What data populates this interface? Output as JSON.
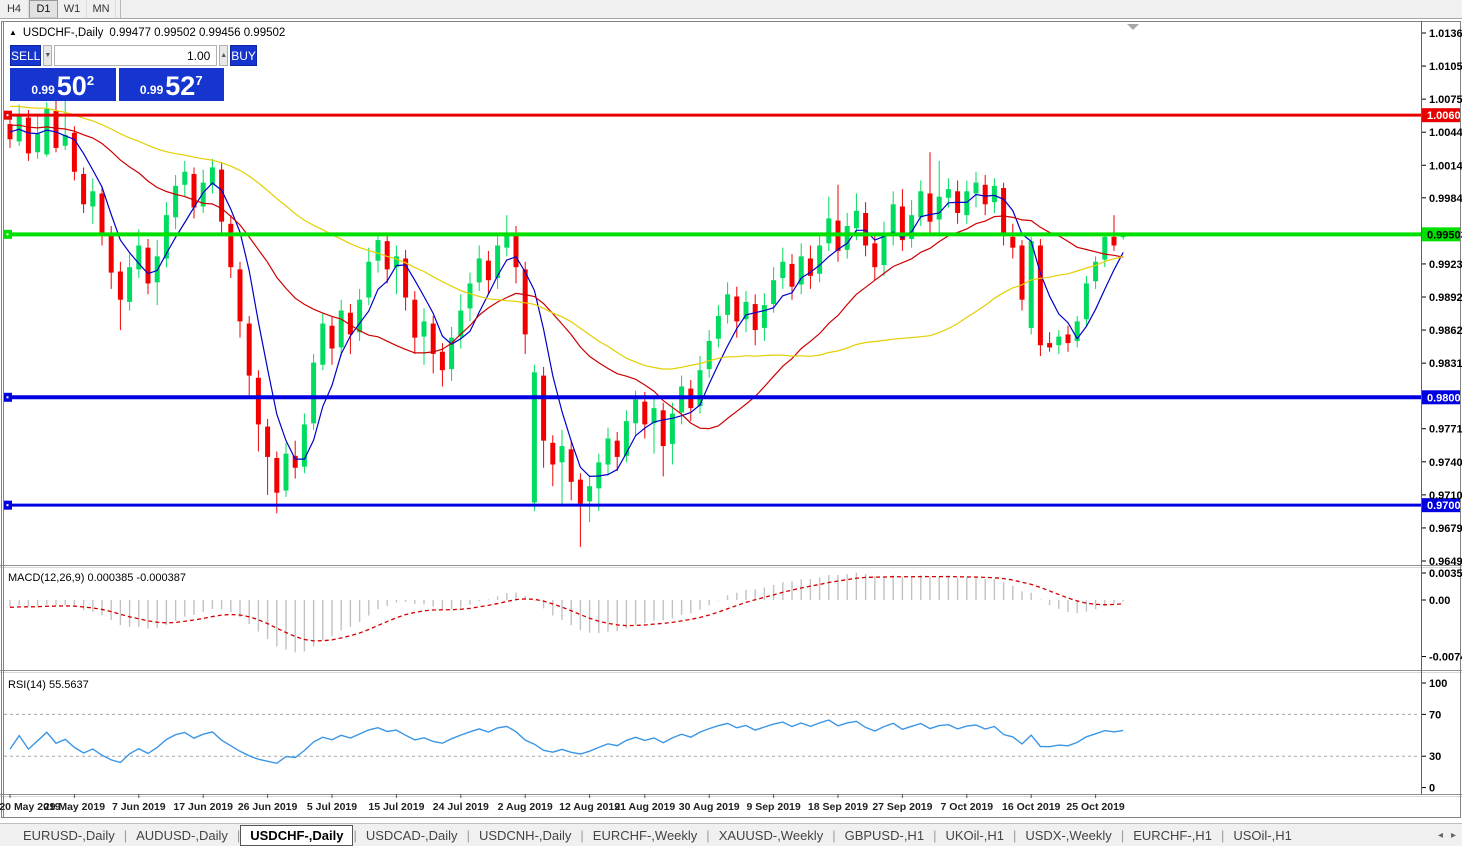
{
  "toolbar": {
    "timeframes": [
      {
        "label": "H4",
        "active": false
      },
      {
        "label": "D1",
        "active": true
      },
      {
        "label": "W1",
        "active": false
      },
      {
        "label": "MN",
        "active": false
      }
    ]
  },
  "chart": {
    "collapse_icon": "▲",
    "symbol_title": "USDCHF-,Daily",
    "ohlc_line": "0.99477 0.99502 0.99456 0.99502"
  },
  "trade_panel": {
    "sell_label": "SELL",
    "buy_label": "BUY",
    "volume": "1.00",
    "spin_down": "▼",
    "spin_up": "▲",
    "sell_price": {
      "prefix": "0.99",
      "big": "50",
      "sup": "2"
    },
    "buy_price": {
      "prefix": "0.99",
      "big": "52",
      "sup": "7"
    }
  },
  "price_axis": {
    "ticks": [
      "1.01360",
      "1.01055",
      "1.00750",
      "1.00445",
      "1.00140",
      "0.99840",
      "0.99230",
      "0.98925",
      "0.98620",
      "0.98315",
      "0.97710",
      "0.97405",
      "0.97100",
      "0.96795",
      "0.96490"
    ]
  },
  "hlines": [
    {
      "label": "1.00602",
      "price": 1.00602,
      "color": "#e80000",
      "text_color": "#ffffff",
      "width": 3
    },
    {
      "label": "0.99503",
      "price": 0.99503,
      "color": "#00e000",
      "text_color": "#000000",
      "width": 4
    },
    {
      "label": "0.98000",
      "price": 0.98,
      "color": "#0000e0",
      "text_color": "#ffffff",
      "width": 4
    },
    {
      "label": "0.97005",
      "price": 0.97005,
      "color": "#0000e0",
      "text_color": "#ffffff",
      "width": 3
    }
  ],
  "indicators": {
    "macd": {
      "label": "MACD(12,26,9)",
      "values_text": "0.000385 -0.000387",
      "axis_ticks": [
        {
          "label": "0.003574",
          "value": 0.003574
        },
        {
          "label": "0.00",
          "value": 0
        },
        {
          "label": "-0.00749",
          "value": -0.00749
        }
      ],
      "fast": 12,
      "slow": 26,
      "signal": 9
    },
    "rsi": {
      "label": "RSI(14)",
      "value_text": "55.5637",
      "period": 14,
      "axis_ticks": [
        {
          "label": "100",
          "value": 100
        },
        {
          "label": "70",
          "value": 70
        },
        {
          "label": "30",
          "value": 30
        },
        {
          "label": "0",
          "value": 0
        }
      ],
      "dashed_levels": [
        70,
        30
      ]
    }
  },
  "moving_averages": [
    {
      "name": "ma-fast",
      "period": 5,
      "color": "#0000c8"
    },
    {
      "name": "ma-mid",
      "period": 20,
      "color": "#cc0000"
    },
    {
      "name": "ma-slow",
      "period": 45,
      "color": "#e3cf00"
    }
  ],
  "chart_data": {
    "type": "candlestick",
    "symbol": "USDCHF",
    "timeframe": "Daily",
    "date_labels": [
      {
        "text": "20 May 2019",
        "bar": 0
      },
      {
        "text": "29 May 2019",
        "bar": 7
      },
      {
        "text": "7 Jun 2019",
        "bar": 14
      },
      {
        "text": "17 Jun 2019",
        "bar": 21
      },
      {
        "text": "26 Jun 2019",
        "bar": 28
      },
      {
        "text": "5 Jul 2019",
        "bar": 35
      },
      {
        "text": "15 Jul 2019",
        "bar": 42
      },
      {
        "text": "24 Jul 2019",
        "bar": 49
      },
      {
        "text": "2 Aug 2019",
        "bar": 56
      },
      {
        "text": "12 Aug 2019",
        "bar": 63
      },
      {
        "text": "21 Aug 2019",
        "bar": 69
      },
      {
        "text": "30 Aug 2019",
        "bar": 76
      },
      {
        "text": "9 Sep 2019",
        "bar": 83
      },
      {
        "text": "18 Sep 2019",
        "bar": 90
      },
      {
        "text": "27 Sep 2019",
        "bar": 97
      },
      {
        "text": "7 Oct 2019",
        "bar": 104
      },
      {
        "text": "16 Oct 2019",
        "bar": 111
      },
      {
        "text": "25 Oct 2019",
        "bar": 118
      }
    ],
    "history_closes": [
      1.0125,
      1.0118,
      1.0122,
      1.011,
      1.0102,
      1.0108,
      1.0095,
      1.0088,
      1.0092,
      1.008,
      1.0072,
      1.0078,
      1.0085,
      1.0076,
      1.0068,
      1.006,
      1.0065,
      1.0072,
      1.0066,
      1.0058,
      1.005,
      1.0056,
      1.0062,
      1.0055,
      1.0048,
      1.0052,
      1.0058,
      1.005,
      1.0044,
      1.0048,
      1.0054,
      1.006,
      1.0052,
      1.0046,
      1.005,
      1.0056,
      1.0048,
      1.0042,
      1.0046,
      1.005
    ],
    "candles": [
      [
        1.0052,
        1.0062,
        1.003,
        1.0038
      ],
      [
        1.0036,
        1.007,
        1.0032,
        1.006
      ],
      [
        1.0058,
        1.0065,
        1.0018,
        1.0025
      ],
      [
        1.0026,
        1.006,
        1.002,
        1.0043
      ],
      [
        1.0024,
        1.0072,
        1.0022,
        1.0066
      ],
      [
        1.0064,
        1.0088,
        1.0026,
        1.003
      ],
      [
        1.0032,
        1.0085,
        1.0028,
        1.0042
      ],
      [
        1.0044,
        1.005,
        1.0,
        1.0008
      ],
      [
        1.0006,
        1.0012,
        0.997,
        0.9978
      ],
      [
        0.9976,
        1.0002,
        0.996,
        0.999
      ],
      [
        0.9988,
        0.9995,
        0.994,
        0.9952
      ],
      [
        0.995,
        0.9958,
        0.99,
        0.9915
      ],
      [
        0.9916,
        0.9925,
        0.9862,
        0.989
      ],
      [
        0.9888,
        0.9932,
        0.988,
        0.992
      ],
      [
        0.9918,
        0.9955,
        0.991,
        0.994
      ],
      [
        0.9938,
        0.9946,
        0.9895,
        0.9905
      ],
      [
        0.9906,
        0.9945,
        0.9885,
        0.993
      ],
      [
        0.9928,
        0.998,
        0.992,
        0.9968
      ],
      [
        0.9966,
        1.0005,
        0.9955,
        0.9995
      ],
      [
        0.9996,
        1.0018,
        0.9985,
        1.0008
      ],
      [
        1.0006,
        1.0012,
        0.9965,
        0.9975
      ],
      [
        0.9976,
        1.001,
        0.997,
        0.9998
      ],
      [
        0.9996,
        1.002,
        0.9988,
        1.0012
      ],
      [
        1.001,
        1.0016,
        0.995,
        0.9962
      ],
      [
        0.996,
        0.9968,
        0.991,
        0.992
      ],
      [
        0.9918,
        0.9925,
        0.9855,
        0.987
      ],
      [
        0.9868,
        0.9875,
        0.98,
        0.982
      ],
      [
        0.9818,
        0.9825,
        0.975,
        0.9775
      ],
      [
        0.9773,
        0.978,
        0.971,
        0.9745
      ],
      [
        0.9744,
        0.975,
        0.9693,
        0.9712
      ],
      [
        0.9714,
        0.9758,
        0.9708,
        0.9748
      ],
      [
        0.9746,
        0.976,
        0.9725,
        0.9735
      ],
      [
        0.9736,
        0.9785,
        0.973,
        0.9775
      ],
      [
        0.9776,
        0.984,
        0.977,
        0.9832
      ],
      [
        0.983,
        0.9878,
        0.9825,
        0.9868
      ],
      [
        0.9866,
        0.9875,
        0.983,
        0.9845
      ],
      [
        0.9846,
        0.989,
        0.9838,
        0.988
      ],
      [
        0.9878,
        0.9886,
        0.984,
        0.9858
      ],
      [
        0.986,
        0.99,
        0.9852,
        0.989
      ],
      [
        0.9892,
        0.9938,
        0.9885,
        0.9925
      ],
      [
        0.9926,
        0.9952,
        0.9915,
        0.9945
      ],
      [
        0.9944,
        0.995,
        0.9905,
        0.9918
      ],
      [
        0.992,
        0.994,
        0.9895,
        0.993
      ],
      [
        0.9928,
        0.9936,
        0.988,
        0.9892
      ],
      [
        0.989,
        0.9898,
        0.984,
        0.9855
      ],
      [
        0.9856,
        0.9882,
        0.983,
        0.987
      ],
      [
        0.9868,
        0.9875,
        0.9822,
        0.984
      ],
      [
        0.9842,
        0.985,
        0.981,
        0.9825
      ],
      [
        0.9826,
        0.9865,
        0.9815,
        0.9855
      ],
      [
        0.9856,
        0.9895,
        0.9845,
        0.988
      ],
      [
        0.9882,
        0.9915,
        0.987,
        0.9905
      ],
      [
        0.9906,
        0.994,
        0.9898,
        0.9928
      ],
      [
        0.9926,
        0.9935,
        0.9895,
        0.9908
      ],
      [
        0.991,
        0.995,
        0.99,
        0.994
      ],
      [
        0.9938,
        0.9968,
        0.993,
        0.9952
      ],
      [
        0.995,
        0.9958,
        0.9905,
        0.992
      ],
      [
        0.9918,
        0.9925,
        0.984,
        0.9858
      ],
      [
        0.9703,
        0.983,
        0.9695,
        0.9823
      ],
      [
        0.982,
        0.9828,
        0.9735,
        0.976
      ],
      [
        0.9758,
        0.9765,
        0.9718,
        0.9738
      ],
      [
        0.974,
        0.977,
        0.97,
        0.9755
      ],
      [
        0.9752,
        0.976,
        0.9705,
        0.9722
      ],
      [
        0.9724,
        0.973,
        0.9662,
        0.9702
      ],
      [
        0.9704,
        0.9728,
        0.9685,
        0.9718
      ],
      [
        0.9716,
        0.9748,
        0.9695,
        0.974
      ],
      [
        0.9738,
        0.9772,
        0.9728,
        0.9762
      ],
      [
        0.976,
        0.9768,
        0.9732,
        0.9745
      ],
      [
        0.9746,
        0.9788,
        0.974,
        0.9778
      ],
      [
        0.9776,
        0.9806,
        0.9765,
        0.9798
      ],
      [
        0.9796,
        0.9805,
        0.9762,
        0.9775
      ],
      [
        0.9776,
        0.98,
        0.9748,
        0.979
      ],
      [
        0.9788,
        0.9795,
        0.9727,
        0.9755
      ],
      [
        0.9757,
        0.9795,
        0.9738,
        0.9785
      ],
      [
        0.9786,
        0.982,
        0.9775,
        0.981
      ],
      [
        0.9808,
        0.9816,
        0.9778,
        0.979
      ],
      [
        0.9792,
        0.9838,
        0.9785,
        0.9825
      ],
      [
        0.9826,
        0.9862,
        0.9818,
        0.9852
      ],
      [
        0.9854,
        0.9885,
        0.9846,
        0.9875
      ],
      [
        0.9876,
        0.9906,
        0.9868,
        0.9895
      ],
      [
        0.9893,
        0.9902,
        0.9855,
        0.987
      ],
      [
        0.9872,
        0.9898,
        0.986,
        0.9888
      ],
      [
        0.9886,
        0.9895,
        0.9848,
        0.9862
      ],
      [
        0.9864,
        0.9896,
        0.9852,
        0.9885
      ],
      [
        0.9886,
        0.992,
        0.9878,
        0.9908
      ],
      [
        0.991,
        0.9938,
        0.99,
        0.9925
      ],
      [
        0.9923,
        0.9932,
        0.989,
        0.9902
      ],
      [
        0.9904,
        0.9942,
        0.9895,
        0.993
      ],
      [
        0.9928,
        0.994,
        0.99,
        0.9912
      ],
      [
        0.9914,
        0.9952,
        0.9906,
        0.994
      ],
      [
        0.9942,
        0.9985,
        0.9935,
        0.9965
      ],
      [
        0.9963,
        0.9996,
        0.9925,
        0.9935
      ],
      [
        0.9936,
        0.997,
        0.9928,
        0.9958
      ],
      [
        0.9956,
        0.9988,
        0.9945,
        0.9972
      ],
      [
        0.997,
        0.998,
        0.993,
        0.994
      ],
      [
        0.9942,
        0.995,
        0.9908,
        0.992
      ],
      [
        0.9922,
        0.9962,
        0.9912,
        0.9952
      ],
      [
        0.995,
        0.999,
        0.994,
        0.9978
      ],
      [
        0.9976,
        0.9992,
        0.9935,
        0.9945
      ],
      [
        0.9946,
        0.9982,
        0.9938,
        0.9968
      ],
      [
        0.9966,
        1.0,
        0.9958,
        0.999
      ],
      [
        0.9988,
        1.0026,
        0.995,
        0.9962
      ],
      [
        0.9964,
        1.0018,
        0.9952,
        0.9985
      ],
      [
        0.9984,
        1.0002,
        0.9975,
        0.9992
      ],
      [
        0.999,
        1.0,
        0.996,
        0.997
      ],
      [
        0.9968,
        1.0,
        0.996,
        0.999
      ],
      [
        0.9988,
        1.0008,
        0.9975,
        0.9998
      ],
      [
        0.9996,
        1.0005,
        0.9968,
        0.9978
      ],
      [
        0.998,
        1.0002,
        0.997,
        0.9995
      ],
      [
        0.9993,
        0.9998,
        0.994,
        0.9952
      ],
      [
        0.9948,
        0.996,
        0.9928,
        0.9938
      ],
      [
        0.994,
        0.9945,
        0.988,
        0.989
      ],
      [
        0.9864,
        0.9948,
        0.9858,
        0.9944
      ],
      [
        0.994,
        0.9946,
        0.9838,
        0.9848
      ],
      [
        0.985,
        0.986,
        0.9842,
        0.9846
      ],
      [
        0.9848,
        0.9862,
        0.984,
        0.9856
      ],
      [
        0.9858,
        0.9866,
        0.9842,
        0.985
      ],
      [
        0.9852,
        0.9875,
        0.9846,
        0.987
      ],
      [
        0.9872,
        0.9912,
        0.9865,
        0.9905
      ],
      [
        0.9907,
        0.993,
        0.99,
        0.9925
      ],
      [
        0.9927,
        0.9952,
        0.992,
        0.9948
      ],
      [
        0.9948,
        0.9968,
        0.9935,
        0.994
      ],
      [
        0.99477,
        0.99502,
        0.99456,
        0.99502
      ]
    ]
  },
  "tabs": {
    "items": [
      {
        "label": "EURUSD-,Daily",
        "active": false
      },
      {
        "label": "AUDUSD-,Daily",
        "active": false
      },
      {
        "label": "USDCHF-,Daily",
        "active": true
      },
      {
        "label": "USDCAD-,Daily",
        "active": false
      },
      {
        "label": "USDCNH-,Daily",
        "active": false
      },
      {
        "label": "EURCHF-,Weekly",
        "active": false
      },
      {
        "label": "XAUUSD-,Weekly",
        "active": false
      },
      {
        "label": "GBPUSD-,H1",
        "active": false
      },
      {
        "label": "UKOil-,H1",
        "active": false
      },
      {
        "label": "USDX-,Weekly",
        "active": false
      },
      {
        "label": "EURCHF-,H1",
        "active": false
      },
      {
        "label": "USOil-,H1",
        "active": false
      }
    ],
    "scroll_left": "◂",
    "scroll_right": "▸"
  },
  "colors": {
    "candle_up": "#00dc5f",
    "candle_down": "#f20000",
    "macd_hist": "#c2c2c2",
    "macd_signal": "#d40000",
    "rsi_line": "#3c96e6",
    "panel_blue": "#1535ce",
    "axis_text": "#000000",
    "date_text": "#222222",
    "window_border": "#828282",
    "shift_marker": "#a8a8a8"
  }
}
